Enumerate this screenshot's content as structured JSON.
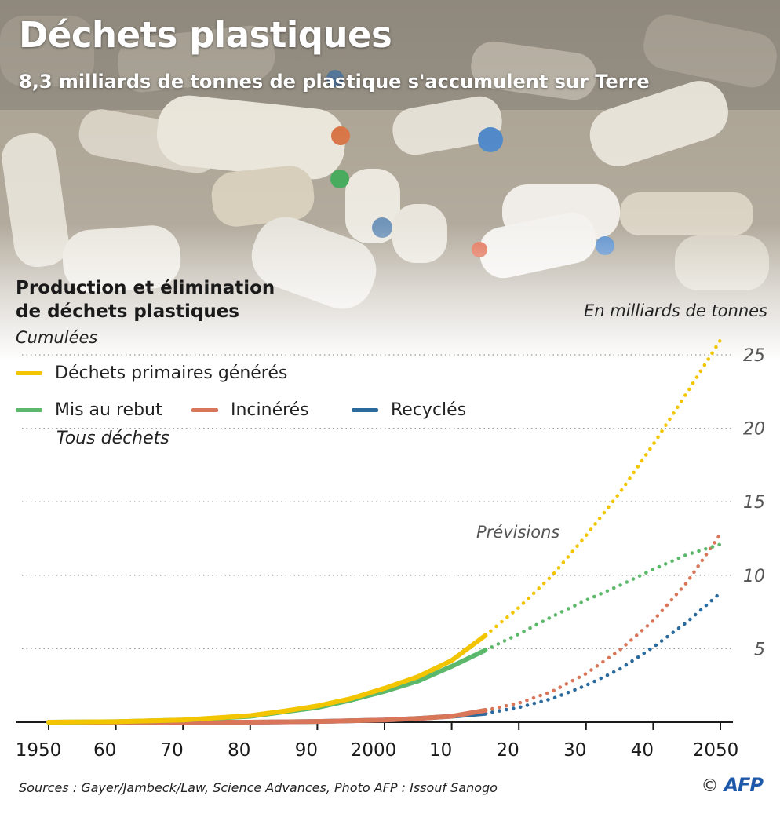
{
  "header": {
    "title": "Déchets plastiques",
    "subtitle": "8,3 milliards de tonnes de plastique s'accumulent sur Terre"
  },
  "section": {
    "title_line1": "Production et élimination",
    "title_line2": "de déchets plastiques",
    "cumulative_label": "Cumulées",
    "unit_label": "En milliards de tonnes",
    "all_waste_label": "Tous déchets",
    "forecast_label": "Prévisions"
  },
  "colors": {
    "primary": "#f2c500",
    "discarded": "#5cb86a",
    "incinerated": "#d9765a",
    "recycled": "#2a6a9c",
    "grid": "#9a9a9a"
  },
  "chart_data": {
    "type": "line",
    "y_ticks": [
      5,
      10,
      15,
      20,
      25
    ],
    "x_ticks": [
      1950,
      1960,
      1970,
      1980,
      1990,
      2000,
      2010,
      2020,
      2030,
      2040,
      2050
    ],
    "x_tick_labels": [
      "1950",
      "60",
      "70",
      "80",
      "90",
      "2000",
      "10",
      "20",
      "30",
      "40",
      "2050"
    ],
    "xlim": [
      1950,
      2050
    ],
    "ylim": [
      0,
      25
    ],
    "forecast_start": 2015,
    "series": [
      {
        "name": "Déchets primaires générés",
        "color_key": "primary",
        "x": [
          1950,
          1960,
          1970,
          1980,
          1985,
          1990,
          1995,
          2000,
          2005,
          2010,
          2015,
          2020,
          2025,
          2030,
          2035,
          2040,
          2045,
          2050
        ],
        "y": [
          0,
          0.03,
          0.15,
          0.45,
          0.75,
          1.1,
          1.6,
          2.3,
          3.1,
          4.2,
          5.9,
          7.8,
          10.0,
          12.7,
          15.6,
          18.9,
          22.4,
          26.0
        ]
      },
      {
        "name": "Mis au rebut",
        "color_key": "discarded",
        "x": [
          1950,
          1960,
          1970,
          1980,
          1985,
          1990,
          1995,
          2000,
          2005,
          2010,
          2015,
          2020,
          2025,
          2030,
          2035,
          2040,
          2045,
          2050
        ],
        "y": [
          0,
          0.03,
          0.15,
          0.4,
          0.7,
          1.0,
          1.5,
          2.1,
          2.8,
          3.8,
          4.9,
          6.0,
          7.2,
          8.3,
          9.3,
          10.4,
          11.4,
          12.1
        ]
      },
      {
        "name": "Incinérés",
        "color_key": "incinerated",
        "x": [
          1950,
          1980,
          1990,
          2000,
          2005,
          2010,
          2015,
          2020,
          2025,
          2030,
          2035,
          2040,
          2045,
          2050
        ],
        "y": [
          0,
          0,
          0.05,
          0.15,
          0.25,
          0.4,
          0.8,
          1.3,
          2.1,
          3.3,
          4.9,
          6.9,
          9.5,
          12.8
        ]
      },
      {
        "name": "Recyclés",
        "color_key": "recycled",
        "x": [
          1950,
          1980,
          1990,
          2000,
          2005,
          2010,
          2015,
          2020,
          2025,
          2030,
          2035,
          2040,
          2045,
          2050
        ],
        "y": [
          0,
          0,
          0.05,
          0.15,
          0.25,
          0.4,
          0.6,
          1.0,
          1.6,
          2.5,
          3.6,
          5.1,
          6.8,
          8.8
        ]
      }
    ]
  },
  "footer": {
    "sources": "Sources : Gayer/Jambeck/Law, Science Advances, Photo AFP : Issouf Sanogo",
    "copyright": "©",
    "agency": "AFP"
  }
}
